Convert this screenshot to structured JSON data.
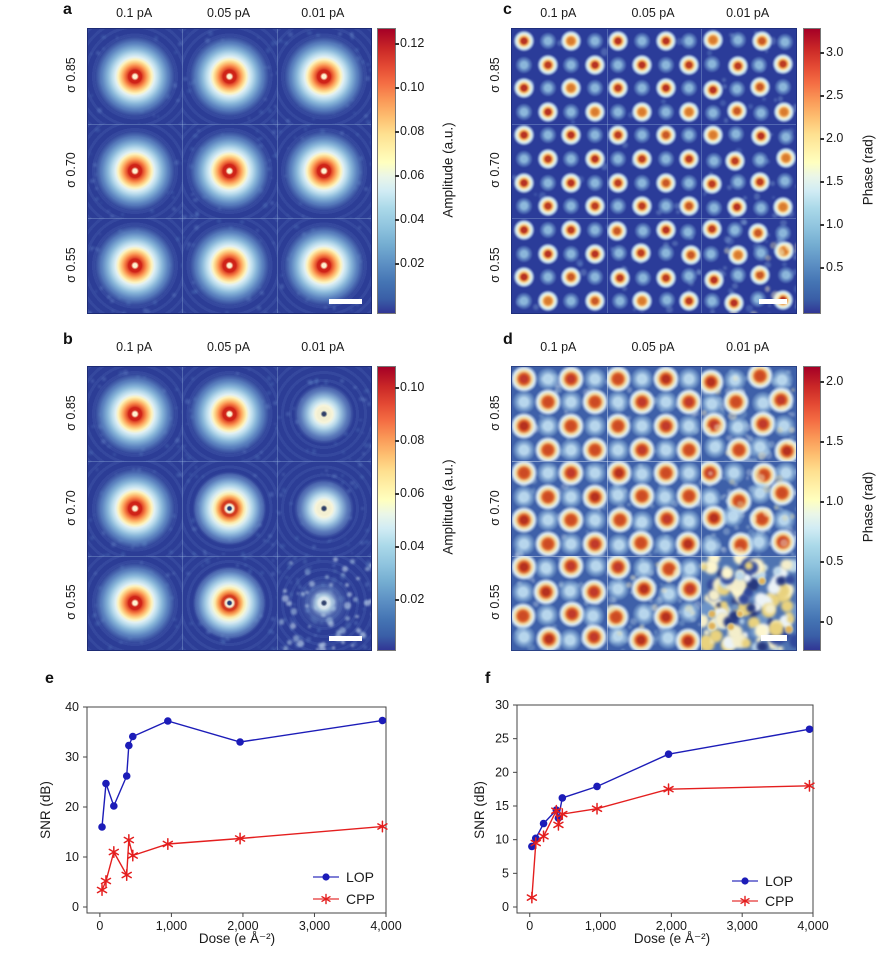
{
  "figure": {
    "background": "#ffffff",
    "series_colors": {
      "lop_blue": "#1c1cb8",
      "cpp_red": "#e41e1e"
    }
  },
  "heatmap_panels": [
    {
      "letter": "a",
      "kind": "probe",
      "col_labels": [
        "0.1 pA",
        "0.05 pA",
        "0.01 pA"
      ],
      "row_labels": [
        "σ 0.85",
        "σ 0.70",
        "σ 0.55"
      ],
      "colorbar": {
        "label": "Amplitude (a.u.)",
        "ticks": [
          "0.12",
          "0.10",
          "0.08",
          "0.06",
          "0.04",
          "0.02"
        ]
      },
      "cells": [
        [
          "probe-full",
          "probe-full",
          "probe-full"
        ],
        [
          "probe-full",
          "probe-full",
          "probe-full"
        ],
        [
          "probe-full",
          "probe-full",
          "probe-full"
        ]
      ],
      "scale_bar": true
    },
    {
      "letter": "b",
      "kind": "probe",
      "col_labels": [
        "0.1 pA",
        "0.05 pA",
        "0.01 pA"
      ],
      "row_labels": [
        "σ 0.85",
        "σ 0.70",
        "σ 0.55"
      ],
      "colorbar": {
        "label": "Amplitude (a.u.)",
        "ticks": [
          "0.10",
          "0.08",
          "0.06",
          "0.04",
          "0.02"
        ]
      },
      "cells": [
        [
          "probe-full",
          "probe-full",
          "probe-weak"
        ],
        [
          "probe-full",
          "probe-medium",
          "probe-weak"
        ],
        [
          "probe-full",
          "probe-medium",
          "probe-noisy"
        ]
      ],
      "scale_bar": true
    },
    {
      "letter": "c",
      "kind": "lattice",
      "col_labels": [
        "0.1 pA",
        "0.05 pA",
        "0.01 pA"
      ],
      "row_labels": [
        "σ 0.85",
        "σ 0.70",
        "σ 0.55"
      ],
      "colorbar": {
        "label": "Phase (rad)",
        "ticks": [
          "3.0",
          "2.5",
          "2.0",
          "1.5",
          "1.0",
          "0.5"
        ]
      },
      "cells": [
        [
          "lat-0",
          "lat-0",
          "lat-1"
        ],
        [
          "lat-0",
          "lat-0",
          "lat-1"
        ],
        [
          "lat-0",
          "lat-1",
          "lat-2"
        ]
      ],
      "scale_bar": true
    },
    {
      "letter": "d",
      "kind": "lattice-light",
      "col_labels": [
        "0.1 pA",
        "0.05 pA",
        "0.01 pA"
      ],
      "row_labels": [
        "σ 0.85",
        "σ 0.70",
        "σ 0.55"
      ],
      "colorbar": {
        "label": "Phase (rad)",
        "ticks": [
          "2.0",
          "1.5",
          "1.0",
          "0.5",
          "0"
        ]
      },
      "cells": [
        [
          "lat-0",
          "lat-0",
          "lat-2"
        ],
        [
          "lat-0",
          "lat-1",
          "lat-3"
        ],
        [
          "lat-1",
          "lat-2",
          "noise"
        ]
      ],
      "scale_bar": true
    }
  ],
  "chart_data": [
    {
      "panel": "e",
      "type": "line",
      "title": "",
      "xlabel": "Dose (e Å⁻²)",
      "ylabel": "SNR (dB)",
      "xlim": [
        0,
        4000
      ],
      "ylim": [
        0,
        40
      ],
      "x_ticks": [
        0,
        1000,
        2000,
        3000,
        4000
      ],
      "x_tick_labels": [
        "0",
        "1,000",
        "2,000",
        "3,000",
        "4,000"
      ],
      "y_ticks": [
        0,
        10,
        20,
        30,
        40
      ],
      "y_tick_labels": [
        "0",
        "10",
        "20",
        "30",
        "40"
      ],
      "grid": false,
      "legend_position": "lower right",
      "x": [
        30,
        85,
        195,
        375,
        405,
        460,
        950,
        1960,
        3950
      ],
      "series": [
        {
          "name": "LOP",
          "color": "#1c1cb8",
          "marker": "circle",
          "values": [
            16.0,
            24.7,
            20.2,
            26.2,
            32.3,
            34.1,
            37.2,
            33.0,
            37.3
          ]
        },
        {
          "name": "CPP",
          "color": "#e41e1e",
          "marker": "asterisk",
          "values": [
            3.4,
            5.2,
            11.0,
            6.4,
            13.4,
            10.3,
            12.6,
            13.7,
            16.1
          ]
        }
      ]
    },
    {
      "panel": "f",
      "type": "line",
      "title": "",
      "xlabel": "Dose (e Å⁻²)",
      "ylabel": "SNR (dB)",
      "xlim": [
        0,
        4000
      ],
      "ylim": [
        0,
        30
      ],
      "x_ticks": [
        0,
        1000,
        2000,
        3000,
        4000
      ],
      "x_tick_labels": [
        "0",
        "1,000",
        "2,000",
        "3,000",
        "4,000"
      ],
      "y_ticks": [
        0,
        5,
        10,
        15,
        20,
        25,
        30
      ],
      "y_tick_labels": [
        "0",
        "5",
        "10",
        "15",
        "20",
        "25",
        "30"
      ],
      "grid": false,
      "legend_position": "lower right",
      "x": [
        30,
        85,
        195,
        375,
        405,
        460,
        950,
        1960,
        3950
      ],
      "series": [
        {
          "name": "LOP",
          "color": "#1c1cb8",
          "marker": "circle",
          "values": [
            9.0,
            10.2,
            12.4,
            14.4,
            13.2,
            16.2,
            17.9,
            22.7,
            26.4
          ]
        },
        {
          "name": "CPP",
          "color": "#e41e1e",
          "marker": "asterisk",
          "values": [
            1.4,
            9.5,
            10.5,
            14.3,
            12.2,
            13.8,
            14.6,
            17.5,
            18.0
          ]
        }
      ]
    }
  ]
}
